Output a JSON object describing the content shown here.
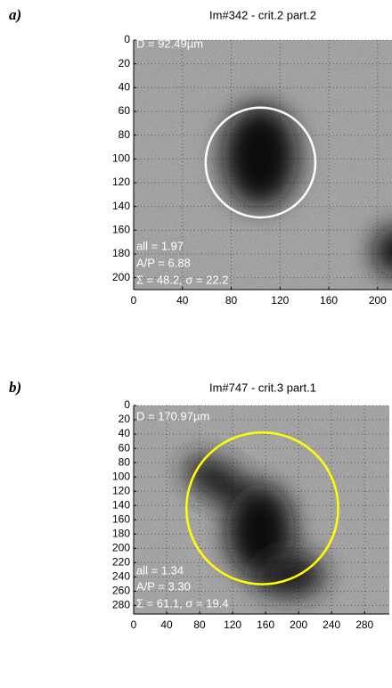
{
  "chart_data": [
    {
      "type": "image",
      "label": "a)",
      "title": "Im#342 - crit.2 part.2",
      "xlim": [
        0,
        214
      ],
      "ylim": [
        0,
        210
      ],
      "xticks": [
        0,
        40,
        80,
        120,
        160,
        200
      ],
      "yticks": [
        0,
        20,
        40,
        60,
        80,
        100,
        120,
        140,
        160,
        180,
        200
      ],
      "grid": true,
      "circle": {
        "cx": 104,
        "cy": 103,
        "r": 45,
        "color": "#ffffff"
      },
      "annotations": [
        "D = 92.49µm",
        "all = 1.97",
        "A/P = 6.88",
        "Σ = 48.2, σ = 22.2"
      ]
    },
    {
      "type": "image",
      "label": "b)",
      "title": "Im#747 - crit.3 part.1",
      "xlim": [
        0,
        310
      ],
      "ylim": [
        0,
        292
      ],
      "xticks": [
        0,
        40,
        80,
        120,
        160,
        200,
        240,
        280
      ],
      "yticks": [
        0,
        20,
        40,
        60,
        80,
        100,
        120,
        140,
        160,
        180,
        200,
        220,
        240,
        260,
        280
      ],
      "grid": true,
      "circle": {
        "cx": 156,
        "cy": 144,
        "r": 92,
        "color": "#ffff00"
      },
      "annotations": [
        "D = 170.97µm",
        "all = 1.34",
        "A/P = 3.30",
        "Σ = 61.1, σ = 19.4"
      ]
    }
  ]
}
